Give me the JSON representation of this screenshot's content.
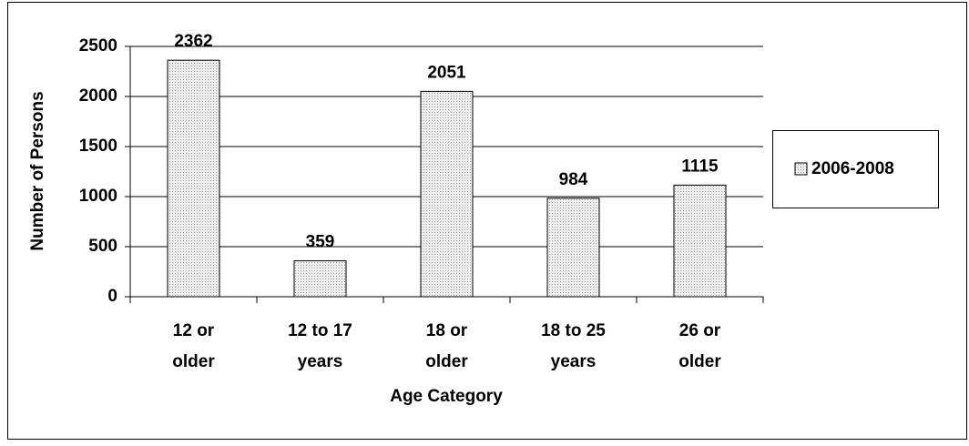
{
  "chart_data": {
    "type": "bar",
    "x_label": "Age Category",
    "y_label": "Number of Persons",
    "categories": [
      [
        "12 or",
        "older"
      ],
      [
        "12 to 17",
        "years"
      ],
      [
        "18 or",
        "older"
      ],
      [
        "18 to 25",
        "years"
      ],
      [
        "26 or",
        "older"
      ]
    ],
    "series": [
      {
        "name": "2006-2008",
        "color": "#d9d9d9",
        "values": [
          2362,
          359,
          2051,
          984,
          1115
        ]
      }
    ],
    "ylim": [
      0,
      2500
    ],
    "yticks": [
      0,
      500,
      1000,
      1500,
      2000,
      2500
    ],
    "grid": true,
    "legend": "right"
  }
}
